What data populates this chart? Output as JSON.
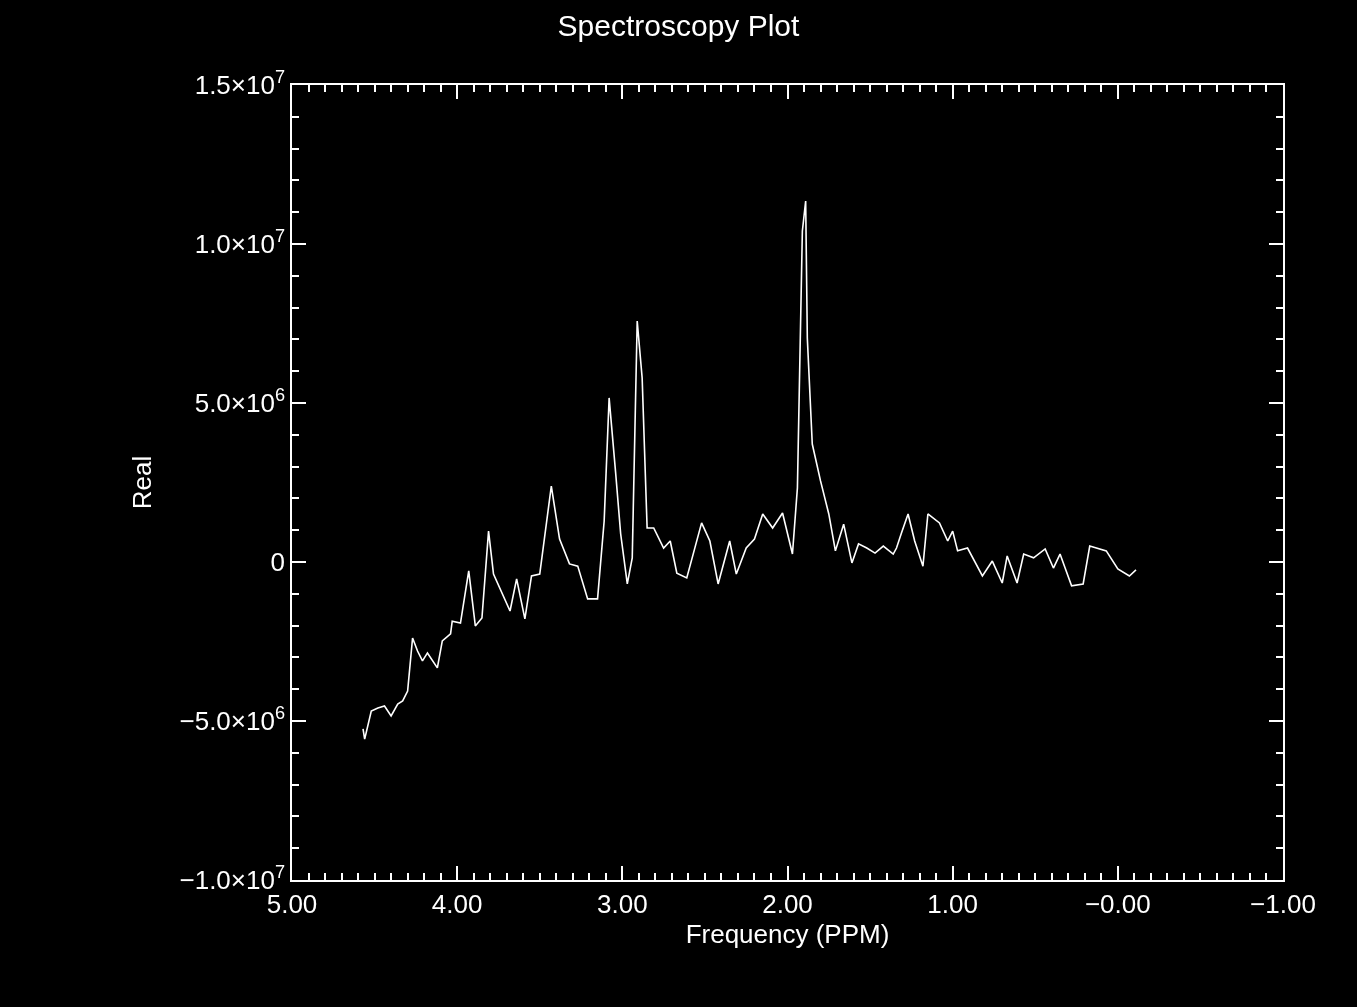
{
  "chart_data": {
    "type": "line",
    "title": "Spectroscopy Plot",
    "xlabel": "Frequency (PPM)",
    "ylabel": "Real",
    "x": [
      4.57,
      4.56,
      4.52,
      4.48,
      4.44,
      4.4,
      4.36,
      4.33,
      4.3,
      4.27,
      4.24,
      4.21,
      4.18,
      4.12,
      4.09,
      4.04,
      4.03,
      3.98,
      3.93,
      3.89,
      3.85,
      3.81,
      3.78,
      3.68,
      3.64,
      3.59,
      3.55,
      3.5,
      3.43,
      3.38,
      3.32,
      3.27,
      3.21,
      3.15,
      3.11,
      3.08,
      3.04,
      3.01,
      2.97,
      2.94,
      2.91,
      2.88,
      2.85,
      2.81,
      2.75,
      2.71,
      2.67,
      2.61,
      2.52,
      2.47,
      2.42,
      2.35,
      2.31,
      2.25,
      2.2,
      2.15,
      2.09,
      2.03,
      1.97,
      1.94,
      1.91,
      1.89,
      1.88,
      1.85,
      1.8,
      1.75,
      1.71,
      1.66,
      1.61,
      1.57,
      1.52,
      1.47,
      1.42,
      1.36,
      1.34,
      1.31,
      1.27,
      1.23,
      1.18,
      1.15,
      1.08,
      1.03,
      1.0,
      0.97,
      0.91,
      0.82,
      0.76,
      0.7,
      0.67,
      0.61,
      0.57,
      0.51,
      0.44,
      0.39,
      0.35,
      0.28,
      0.21,
      0.17,
      0.07,
      0.0,
      -0.07,
      -0.11
    ],
    "series": [
      {
        "color": "#ffffff",
        "values": [
          -5250000,
          -5570000,
          -4690000,
          -4590000,
          -4530000,
          -4840000,
          -4470000,
          -4370000,
          -4060000,
          -2390000,
          -2800000,
          -3110000,
          -2860000,
          -3330000,
          -2480000,
          -2260000,
          -1860000,
          -1920000,
          -280000,
          -2010000,
          -1760000,
          970000,
          -380000,
          -1540000,
          -530000,
          -1790000,
          -440000,
          -380000,
          2390000,
          720000,
          -60000,
          -130000,
          -1160000,
          -1160000,
          1290000,
          5160000,
          2770000,
          880000,
          -690000,
          130000,
          7580000,
          5790000,
          1070000,
          1070000,
          440000,
          660000,
          -350000,
          -500000,
          1230000,
          660000,
          -690000,
          660000,
          -380000,
          440000,
          720000,
          1510000,
          1070000,
          1540000,
          250000,
          2330000,
          10410000,
          11350000,
          7040000,
          3710000,
          2550000,
          1510000,
          350000,
          1190000,
          -30000,
          570000,
          440000,
          280000,
          500000,
          250000,
          440000,
          910000,
          1510000,
          660000,
          -130000,
          1510000,
          1230000,
          660000,
          970000,
          350000,
          440000,
          -440000,
          30000,
          -660000,
          190000,
          -660000,
          250000,
          130000,
          410000,
          -190000,
          250000,
          -750000,
          -690000,
          500000,
          350000,
          -220000,
          -440000,
          -250000
        ]
      }
    ],
    "xlim": [
      5,
      -1
    ],
    "xticks": [
      {
        "value": 5,
        "label": "5.00"
      },
      {
        "value": 4,
        "label": "4.00"
      },
      {
        "value": 3,
        "label": "3.00"
      },
      {
        "value": 2,
        "label": "2.00"
      },
      {
        "value": 1,
        "label": "1.00"
      },
      {
        "value": 0,
        "label": "−0.00"
      },
      {
        "value": -1,
        "label": "−1.00"
      }
    ],
    "ylim": [
      -10000000,
      15000000
    ],
    "yticks": [
      {
        "value": -10000000,
        "label": "−1.0×10$^{7}$"
      },
      {
        "value": -5000000,
        "label": "−5.0×10$^{6}$"
      },
      {
        "value": 0,
        "label": "0"
      },
      {
        "value": 5000000,
        "label": "5.0×10$^{6}$"
      },
      {
        "value": 10000000,
        "label": "1.0×10$^{7}$"
      },
      {
        "value": 15000000,
        "label": "1.5×10$^{7}$"
      }
    ],
    "grid": false,
    "marker": "none",
    "line_style": "solid"
  }
}
